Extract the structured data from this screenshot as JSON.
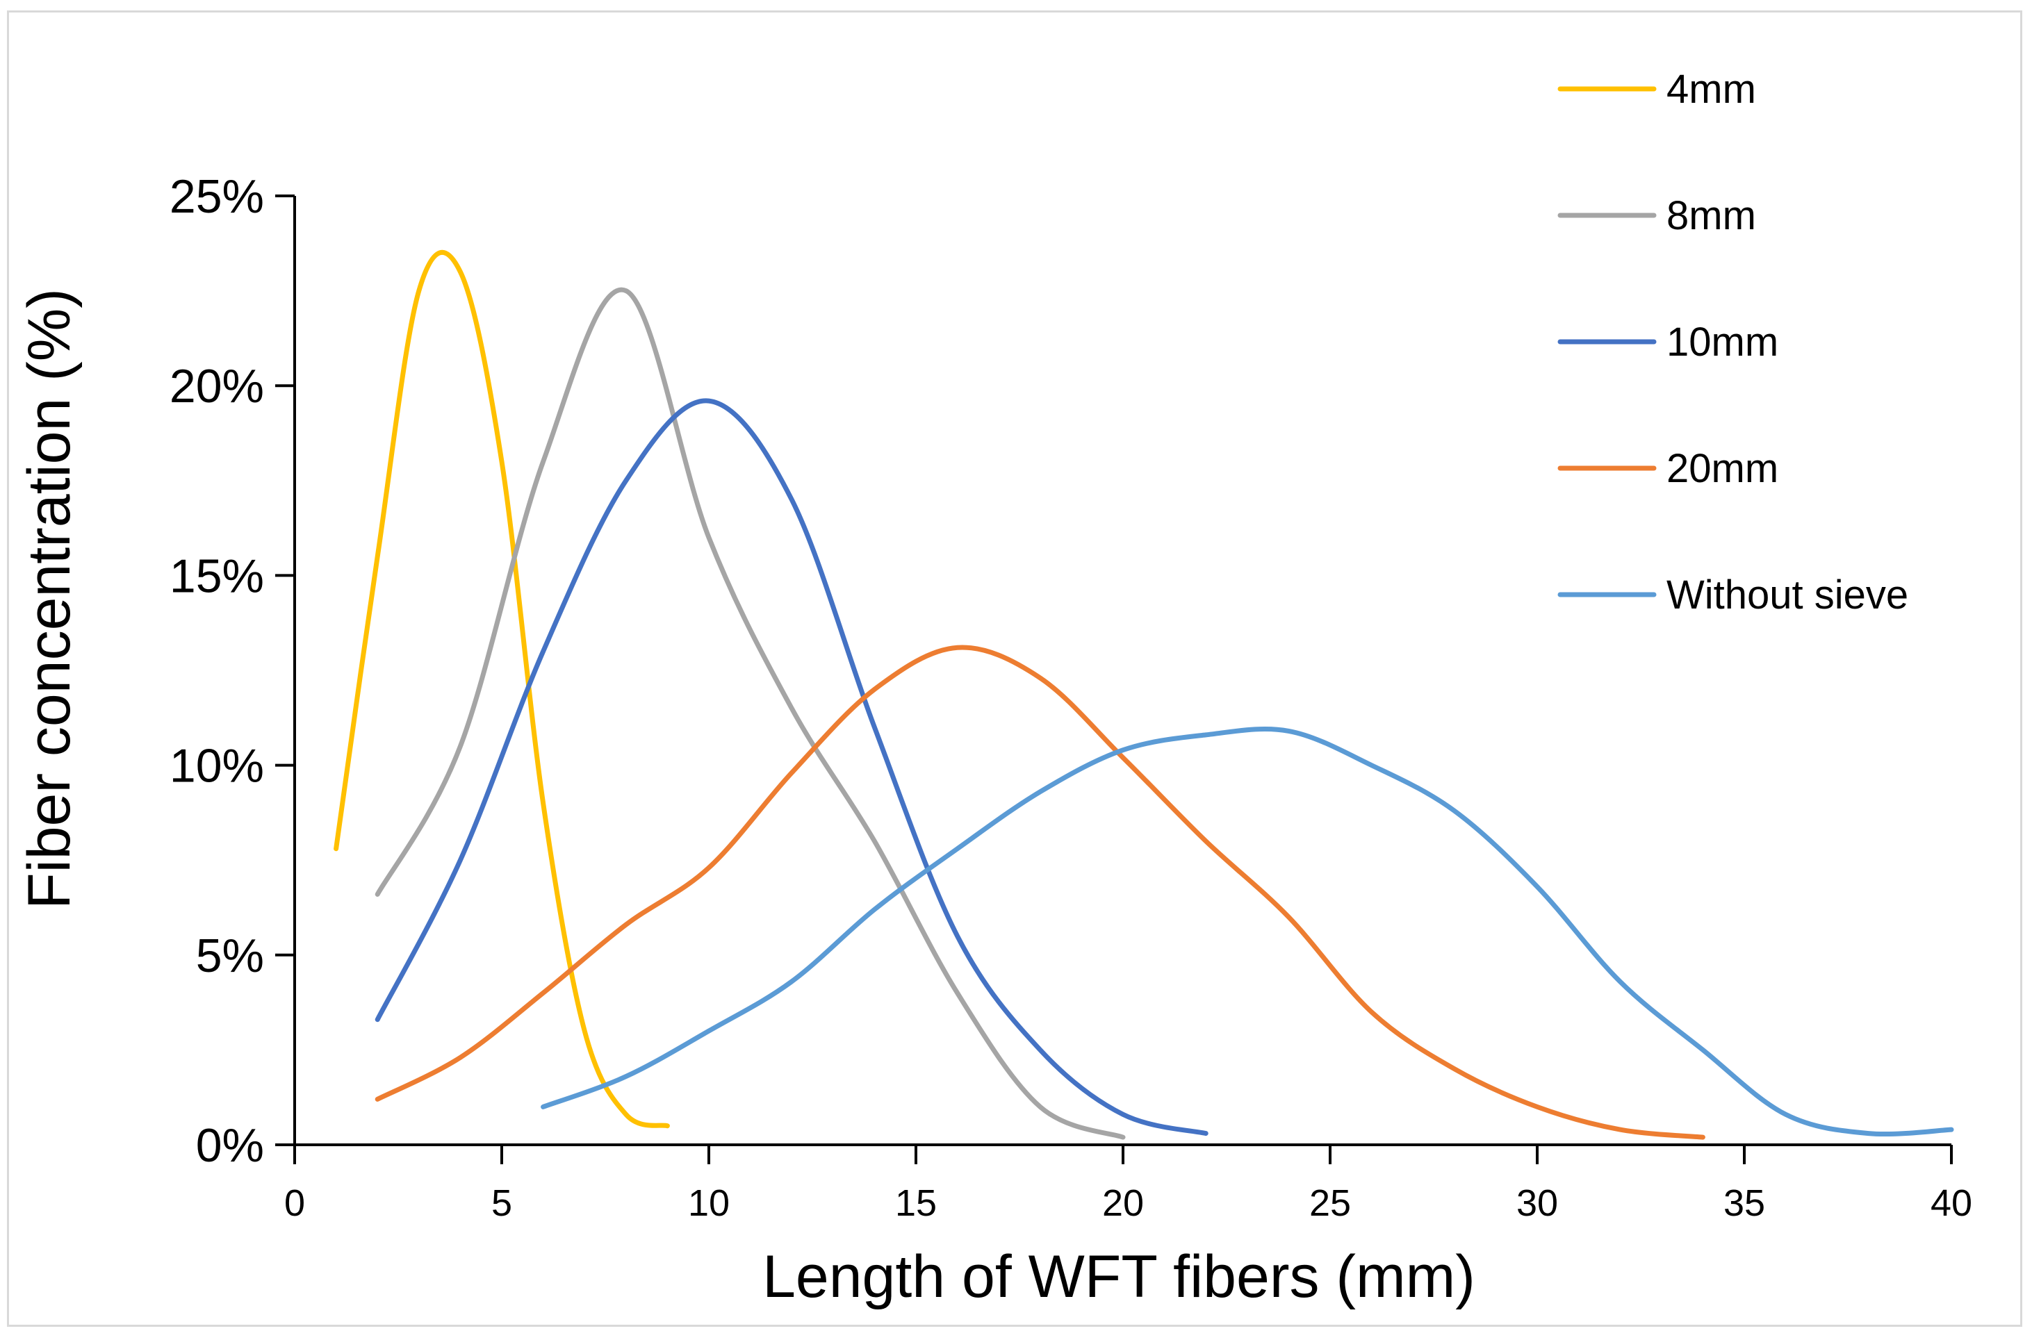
{
  "chart_data": {
    "type": "line",
    "title": "",
    "xlabel": "Length of WFT fibers (mm)",
    "ylabel": "Fiber concentration (%)",
    "xlim": [
      0,
      40
    ],
    "ylim": [
      0,
      25
    ],
    "xticks": [
      0,
      5,
      10,
      15,
      20,
      25,
      30,
      35,
      40
    ],
    "yticks": [
      0,
      5,
      10,
      15,
      20,
      25
    ],
    "ytick_labels": [
      "0%",
      "5%",
      "10%",
      "15%",
      "20%",
      "25%"
    ],
    "grid": false,
    "legend_position": "right",
    "series": [
      {
        "name": "4mm",
        "color": "#FFC000",
        "x": [
          1,
          2,
          3,
          4,
          5,
          6,
          7,
          8,
          9
        ],
        "y": [
          7.8,
          15.5,
          22.5,
          23.0,
          18.0,
          9.0,
          3.0,
          0.8,
          0.5
        ]
      },
      {
        "name": "8mm",
        "color": "#A5A5A5",
        "x": [
          2,
          4,
          6,
          8,
          10,
          12,
          14,
          16,
          18,
          20
        ],
        "y": [
          6.6,
          10.5,
          18.0,
          22.5,
          16.0,
          11.5,
          8.0,
          4.0,
          1.0,
          0.2
        ]
      },
      {
        "name": "10mm",
        "color": "#4472C4",
        "x": [
          2,
          4,
          6,
          8,
          10,
          12,
          14,
          16,
          18,
          20,
          22
        ],
        "y": [
          3.3,
          7.5,
          13.0,
          17.5,
          19.6,
          17.0,
          11.0,
          5.5,
          2.5,
          0.8,
          0.3
        ]
      },
      {
        "name": "20mm",
        "color": "#ED7D31",
        "x": [
          2,
          4,
          6,
          8,
          10,
          12,
          14,
          16,
          18,
          20,
          22,
          24,
          26,
          28,
          30,
          32,
          34
        ],
        "y": [
          1.2,
          2.3,
          4.0,
          5.8,
          7.3,
          9.8,
          12.0,
          13.1,
          12.3,
          10.2,
          8.0,
          6.0,
          3.5,
          2.0,
          1.0,
          0.4,
          0.2
        ]
      },
      {
        "name": "Without sieve",
        "color": "#5B9BD5",
        "x": [
          6,
          8,
          10,
          12,
          14,
          16,
          18,
          20,
          22,
          24,
          26,
          28,
          30,
          32,
          34,
          36,
          38,
          40
        ],
        "y": [
          1.0,
          1.8,
          3.0,
          4.3,
          6.2,
          7.8,
          9.3,
          10.4,
          10.8,
          10.9,
          10.0,
          8.8,
          6.8,
          4.3,
          2.5,
          0.8,
          0.3,
          0.4
        ]
      }
    ]
  }
}
